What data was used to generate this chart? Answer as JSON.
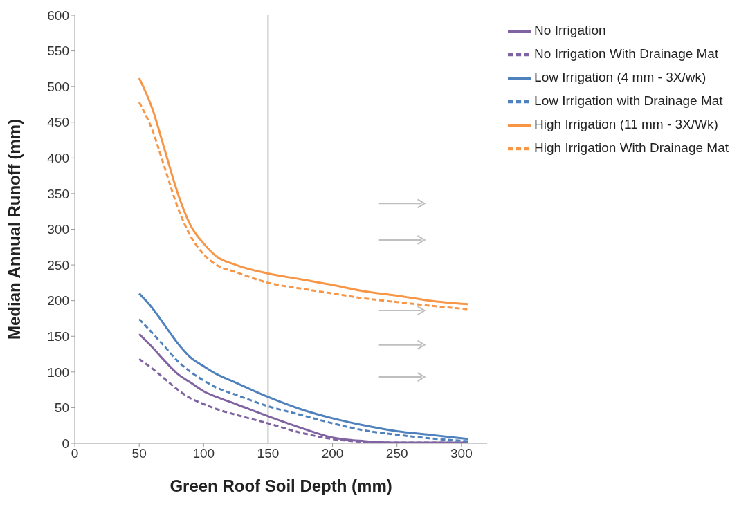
{
  "chart_data": {
    "type": "line",
    "xlabel": "Green Roof Soil Depth (mm)",
    "ylabel": "Median Annual Runoff (mm)",
    "x": [
      50,
      60,
      70,
      80,
      90,
      100,
      110,
      125,
      150,
      175,
      200,
      225,
      250,
      275,
      305
    ],
    "series": [
      {
        "name": "No Irrigation",
        "color": "#8064a2",
        "line_style": "solid",
        "values": [
          153,
          135,
          115,
          97,
          85,
          73,
          65,
          55,
          38,
          22,
          8,
          3,
          1,
          1,
          1
        ]
      },
      {
        "name": "No Irrigation With Drainage Mat",
        "color": "#8064a2",
        "line_style": "dashed",
        "values": [
          118,
          105,
          90,
          75,
          63,
          55,
          48,
          40,
          28,
          15,
          6,
          2,
          1,
          1,
          1
        ]
      },
      {
        "name": "Low Irrigation (4 mm - 3X/wk)",
        "color": "#4f81bd",
        "line_style": "solid",
        "values": [
          210,
          190,
          165,
          140,
          120,
          108,
          97,
          85,
          65,
          48,
          35,
          25,
          17,
          12,
          6
        ]
      },
      {
        "name": "Low Irrigation with Drainage Mat",
        "color": "#4f81bd",
        "line_style": "dashed",
        "values": [
          174,
          155,
          135,
          115,
          100,
          88,
          78,
          68,
          52,
          40,
          28,
          18,
          12,
          7,
          3
        ]
      },
      {
        "name": "High Irrigation (11 mm - 3X/Wk)",
        "color": "#f79646",
        "line_style": "solid",
        "values": [
          512,
          470,
          410,
          350,
          305,
          280,
          262,
          250,
          238,
          230,
          222,
          213,
          207,
          200,
          195
        ]
      },
      {
        "name": "High Irrigation With Drainage Mat",
        "color": "#f79646",
        "line_style": "dashed",
        "values": [
          478,
          440,
          385,
          330,
          290,
          265,
          250,
          240,
          225,
          217,
          210,
          203,
          198,
          193,
          188
        ]
      }
    ],
    "xlim": [
      0,
      320
    ],
    "xticks": [
      0,
      50,
      100,
      150,
      200,
      250,
      300
    ],
    "ylim": [
      0,
      600
    ],
    "yticks": [
      0,
      50,
      100,
      150,
      200,
      250,
      300,
      350,
      400,
      450,
      500,
      550,
      600
    ],
    "ref_lines": [
      {
        "axis": "x",
        "value": 150,
        "color": "#bfbfbf",
        "line_style": "solid"
      }
    ],
    "grid": false,
    "legend": "top right",
    "marker": "none"
  }
}
